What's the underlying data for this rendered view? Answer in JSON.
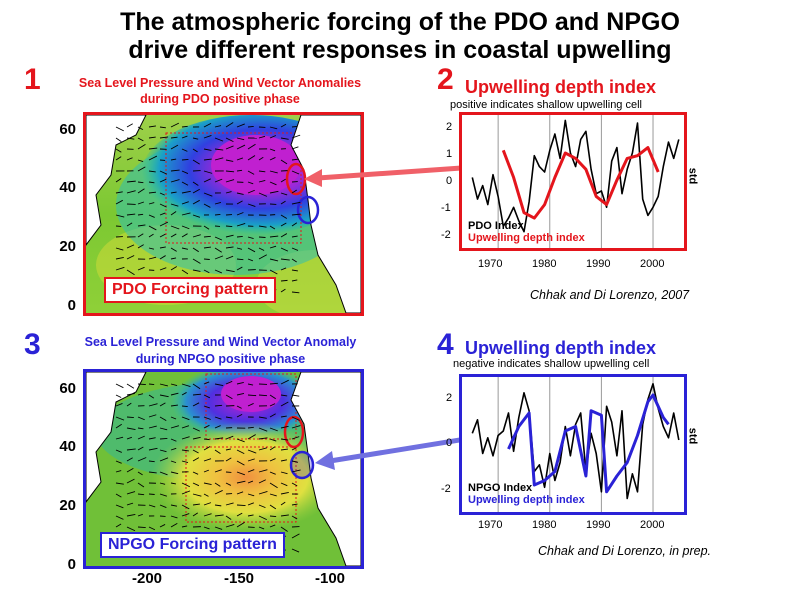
{
  "title": {
    "line1": "The atmospheric forcing of the PDO and NPGO",
    "line2": "drive different responses in coastal upwelling"
  },
  "panel1": {
    "number": "1",
    "caption_line1": "Sea Level Pressure  and Wind Vector Anomalies",
    "caption_line2": "during PDO positive phase",
    "label": "PDO Forcing pattern",
    "color": "#e4151c"
  },
  "panel2": {
    "number": "2",
    "title": "Upwelling depth index",
    "subtitle": "positive indicates shallow upwelling cell",
    "legend_black": "PDO Index",
    "legend_color": "Upwelling depth index",
    "std_label": "std",
    "citation": "Chhak and Di Lorenzo, 2007",
    "color": "#e4151c"
  },
  "panel3": {
    "number": "3",
    "caption_line1": "Sea Level Pressure and Wind Vector Anomaly",
    "caption_line2": "during NPGO positive phase",
    "label": "NPGO Forcing pattern",
    "color": "#2a22d6"
  },
  "panel4": {
    "number": "4",
    "title": "Upwelling depth index",
    "subtitle": "negative indicates shallow upwelling cell",
    "legend_black": "NPGO Index",
    "legend_color": "Upwelling depth index",
    "std_label": "std",
    "citation": "Chhak and Di Lorenzo, in prep.",
    "color": "#2a22d6"
  },
  "map_axes": {
    "yticks": [
      "60",
      "40",
      "20",
      "0"
    ],
    "xticks": [
      "-200",
      "-150",
      "-100"
    ]
  },
  "chart_data": [
    {
      "type": "line",
      "panel": "2",
      "title": "Upwelling depth index",
      "xticks": [
        1970,
        1980,
        1990,
        2000
      ],
      "yticks": [
        2,
        1,
        0,
        -1,
        -2
      ],
      "xlim": [
        1963,
        2006
      ],
      "ylim": [
        -2.4,
        2.5
      ],
      "ylabel": "std",
      "series": [
        {
          "name": "PDO Index",
          "color": "#000000",
          "x": [
            1965,
            1966,
            1967,
            1968,
            1969,
            1970,
            1971,
            1972,
            1973,
            1974,
            1975,
            1976,
            1977,
            1978,
            1979,
            1980,
            1981,
            1982,
            1983,
            1984,
            1985,
            1986,
            1987,
            1988,
            1989,
            1990,
            1991,
            1992,
            1993,
            1994,
            1995,
            1996,
            1997,
            1998,
            1999,
            2000,
            2001,
            2002,
            2003,
            2004,
            2005
          ],
          "y": [
            0.2,
            -0.6,
            -0.1,
            -0.8,
            0.3,
            -0.5,
            -1.6,
            -1.3,
            -0.9,
            -1.4,
            -1.8,
            -0.7,
            1.0,
            0.6,
            0.4,
            1.2,
            1.8,
            0.9,
            2.3,
            1.1,
            0.6,
            1.6,
            1.9,
            0.5,
            -0.4,
            -0.3,
            -0.9,
            0.8,
            1.3,
            -0.4,
            0.5,
            1.1,
            2.2,
            -0.6,
            -1.2,
            -0.9,
            -0.5,
            0.6,
            1.5,
            0.9,
            1.6
          ]
        },
        {
          "name": "Upwelling depth index",
          "color": "#e4151c",
          "x": [
            1971,
            1973,
            1975,
            1977,
            1979,
            1981,
            1983,
            1985,
            1987,
            1989,
            1991,
            1993,
            1995,
            1997,
            1999,
            2001
          ],
          "y": [
            1.2,
            0.2,
            -1.1,
            -1.3,
            -0.8,
            0.2,
            1.1,
            0.9,
            0.5,
            -0.5,
            -0.8,
            0.1,
            0.9,
            1.0,
            1.3,
            0.4
          ]
        }
      ]
    },
    {
      "type": "line",
      "panel": "4",
      "title": "Upwelling depth index",
      "xticks": [
        1970,
        1980,
        1990,
        2000
      ],
      "yticks": [
        2,
        0,
        -2
      ],
      "xlim": [
        1963,
        2006
      ],
      "ylim": [
        -3,
        3
      ],
      "ylabel": "std",
      "series": [
        {
          "name": "NPGO Index",
          "color": "#000000",
          "x": [
            1965,
            1966,
            1967,
            1968,
            1969,
            1970,
            1971,
            1972,
            1973,
            1974,
            1975,
            1976,
            1977,
            1978,
            1979,
            1980,
            1981,
            1982,
            1983,
            1984,
            1985,
            1986,
            1987,
            1988,
            1989,
            1990,
            1991,
            1992,
            1993,
            1994,
            1995,
            1996,
            1997,
            1998,
            1999,
            2000,
            2001,
            2002,
            2003,
            2004,
            2005
          ],
          "y": [
            0.5,
            1.1,
            -0.4,
            0.3,
            -0.5,
            0.4,
            0.6,
            1.4,
            -0.3,
            1.2,
            2.3,
            1.5,
            -1.2,
            -0.9,
            -1.9,
            -0.4,
            -1.6,
            -0.8,
            0.8,
            -0.5,
            0.9,
            1.4,
            -1.2,
            0.5,
            -0.4,
            -2.1,
            1.7,
            1.0,
            -0.5,
            1.5,
            -2.4,
            -1.3,
            -2.1,
            0.9,
            2.0,
            2.7,
            1.6,
            0.8,
            0.3,
            1.4,
            0.2
          ]
        },
        {
          "name": "Upwelling depth index",
          "color": "#2a22d6",
          "x": [
            1972,
            1974,
            1976,
            1977,
            1979,
            1981,
            1983,
            1985,
            1987,
            1988,
            1990,
            1991,
            1993,
            1995,
            1997,
            1999,
            2000,
            2002,
            2003
          ],
          "y": [
            -0.2,
            0.8,
            1.4,
            -1.8,
            -1.6,
            -1.2,
            0.6,
            0.8,
            -1.4,
            1.5,
            1.3,
            -2.1,
            -1.4,
            -0.8,
            0.4,
            1.9,
            2.2,
            1.2,
            0.9
          ]
        }
      ]
    }
  ]
}
